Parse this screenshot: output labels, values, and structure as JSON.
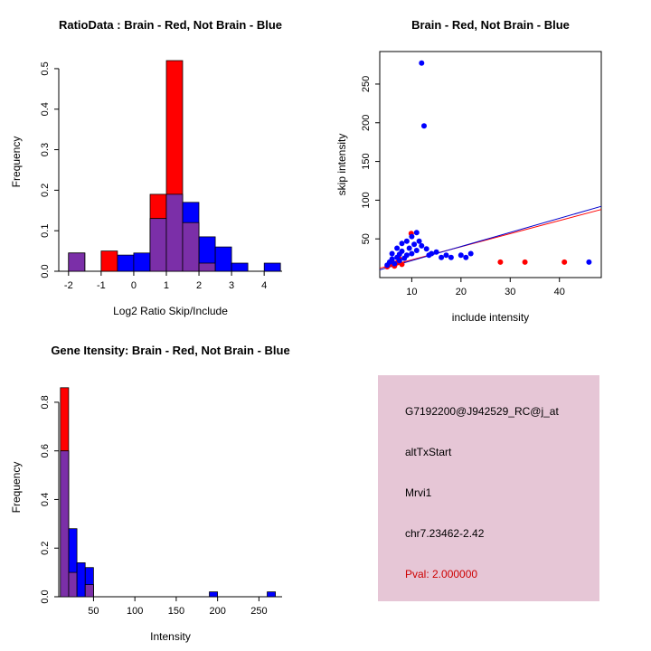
{
  "figure": {
    "background": "#FFFFFF",
    "text_color": "#000000"
  },
  "info": {
    "probe_id": "G7192200@J942529_RC@j_at",
    "event_type": "altTxStart",
    "gene": "Mrvi1",
    "locus": "chr7.23462-2.42",
    "pval": "Pval: 2.000000",
    "pval_color": "#CD0000",
    "bg_color": "#E6C6D6"
  },
  "chart_data": [
    {
      "id": "ratio-hist",
      "type": "bar",
      "title": "RatioData : Brain - Red, Not Brain - Blue",
      "xlabel": "Log2 Ratio Skip/Include",
      "ylabel": "Frequency",
      "xlim": [
        -2.3,
        4.55
      ],
      "ylim": [
        0,
        0.54
      ],
      "xticks": [
        -2,
        -1,
        0,
        1,
        2,
        3,
        4
      ],
      "yticks": [
        0,
        0.1,
        0.2,
        0.3,
        0.4,
        0.5
      ],
      "xdec": 0,
      "ydec": 1,
      "bin_width": 0.5,
      "bin_start": [
        -2,
        -1,
        -0.5,
        0,
        0.5,
        1,
        1.5,
        2,
        2.5,
        3,
        4
      ],
      "series": [
        {
          "name": "Brain",
          "color": "#FF0000",
          "values": [
            0.045,
            0.05,
            0,
            0,
            0.19,
            0.52,
            0.12,
            0.02,
            0,
            0,
            0
          ]
        },
        {
          "name": "Not Brain",
          "color": "#0000FF",
          "values": [
            0.045,
            0,
            0.04,
            0.045,
            0.13,
            0.19,
            0.17,
            0.085,
            0.06,
            0.02,
            0.02
          ]
        }
      ],
      "overlap_color": "#7B2FA8",
      "legend": "overlap of red and blue histograms renders purple"
    },
    {
      "id": "intensity-scatter",
      "type": "scatter",
      "title": "Brain - Red, Not Brain - Blue",
      "xlabel": "include intensity",
      "ylabel": "skip intensity",
      "xlim": [
        3.5,
        48.5
      ],
      "ylim": [
        0,
        292
      ],
      "xticks": [
        10,
        20,
        30,
        40
      ],
      "yticks": [
        50,
        100,
        150,
        200,
        250
      ],
      "xdec": 0,
      "ydec": 0,
      "series": [
        {
          "name": "Brain",
          "color": "#FF0000",
          "points": [
            [
              5,
              14
            ],
            [
              5.5,
              17
            ],
            [
              6,
              21
            ],
            [
              6.5,
              15
            ],
            [
              7,
              19
            ],
            [
              7.5,
              24
            ],
            [
              8,
              17
            ],
            [
              9.9,
              57
            ],
            [
              28,
              20
            ],
            [
              33,
              20
            ],
            [
              41,
              20
            ]
          ]
        },
        {
          "name": "Not Brain",
          "color": "#0000FF",
          "points": [
            [
              5,
              16
            ],
            [
              5.5,
              20
            ],
            [
              6,
              24
            ],
            [
              6,
              31
            ],
            [
              6.5,
              18
            ],
            [
              7,
              26
            ],
            [
              7,
              38
            ],
            [
              7.5,
              30
            ],
            [
              7.5,
              22
            ],
            [
              8,
              34
            ],
            [
              8,
              44
            ],
            [
              8.5,
              25
            ],
            [
              9,
              29
            ],
            [
              9,
              47
            ],
            [
              9.5,
              38
            ],
            [
              10,
              31
            ],
            [
              10,
              53
            ],
            [
              10.5,
              43
            ],
            [
              11,
              35
            ],
            [
              11,
              58
            ],
            [
              11.5,
              47
            ],
            [
              12,
              41
            ],
            [
              12,
              277
            ],
            [
              12.5,
              196
            ],
            [
              13,
              37
            ],
            [
              13.5,
              29
            ],
            [
              14,
              31
            ],
            [
              15,
              33
            ],
            [
              16,
              26
            ],
            [
              17,
              29
            ],
            [
              18,
              26
            ],
            [
              20,
              29
            ],
            [
              21,
              26
            ],
            [
              22,
              31
            ],
            [
              46,
              20
            ]
          ]
        }
      ],
      "lines": [
        {
          "name": "brain-fit-line",
          "color": "#FF0000",
          "x": [
            3.5,
            48.5
          ],
          "y": [
            12,
            88
          ]
        },
        {
          "name": "notbrain-fit-line",
          "color": "#0000CC",
          "x": [
            3.5,
            48.5
          ],
          "y": [
            10,
            92
          ]
        }
      ]
    },
    {
      "id": "gene-intensity-hist",
      "type": "bar",
      "title": "Gene Itensity: Brain - Red, Not Brain - Blue",
      "xlabel": "Intensity",
      "ylabel": "Frequency",
      "xlim": [
        8,
        278
      ],
      "ylim": [
        0,
        0.9
      ],
      "xticks": [
        50,
        100,
        150,
        200,
        250
      ],
      "yticks": [
        0,
        0.2,
        0.4,
        0.6,
        0.8
      ],
      "xdec": 0,
      "ydec": 1,
      "bin_width": 10,
      "bin_start": [
        10,
        20,
        30,
        40,
        190,
        260
      ],
      "series": [
        {
          "name": "Brain",
          "color": "#FF0000",
          "values": [
            0.86,
            0.1,
            0,
            0.05,
            0,
            0
          ]
        },
        {
          "name": "Not Brain",
          "color": "#0000FF",
          "values": [
            0.6,
            0.28,
            0.14,
            0.12,
            0.02,
            0.02
          ]
        }
      ],
      "overlap_color": "#7B2FA8",
      "legend": "overlap of red and blue histograms renders purple"
    }
  ]
}
